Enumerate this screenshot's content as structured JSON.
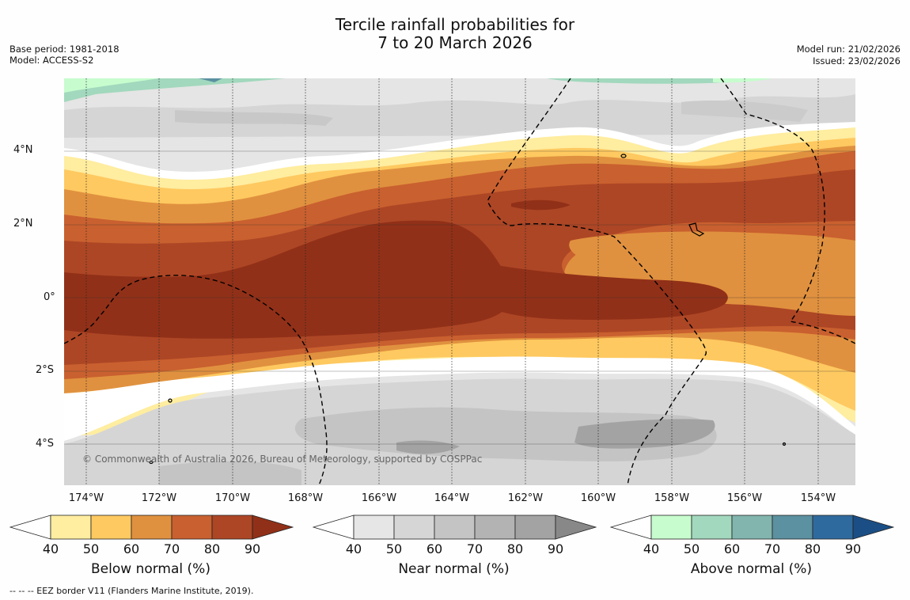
{
  "header": {
    "title_line1": "Tercile rainfall probabilities for",
    "title_line2": "7 to 20 March 2026",
    "base_period": "Base period: 1981-2018",
    "model": "Model: ACCESS-S2",
    "model_run": "Model run: 21/02/2026",
    "issued": "Issued: 23/02/2026"
  },
  "map": {
    "lat_labels": [
      "4°N",
      "2°N",
      "0°",
      "2°S",
      "4°S"
    ],
    "lon_labels": [
      "174°W",
      "172°W",
      "170°W",
      "168°W",
      "166°W",
      "164°W",
      "162°W",
      "160°W",
      "158°W",
      "156°W",
      "154°W"
    ],
    "copyright": "© Commonwealth of Australia 2026, Bureau of Meteorology, supported by COSPPac"
  },
  "colorbars": [
    {
      "title": "Below normal (%)",
      "ticks": [
        "40",
        "50",
        "60",
        "70",
        "80",
        "90"
      ],
      "colors": [
        "#ffeda0",
        "#fec960",
        "#e0913f",
        "#c9602f",
        "#ad4625",
        "#913018"
      ]
    },
    {
      "title": "Near normal (%)",
      "ticks": [
        "40",
        "50",
        "60",
        "70",
        "80",
        "90"
      ],
      "colors": [
        "#e6e6e6",
        "#d6d6d6",
        "#c4c4c4",
        "#b3b3b3",
        "#a3a3a3",
        "#888888"
      ]
    },
    {
      "title": "Above normal (%)",
      "ticks": [
        "40",
        "50",
        "60",
        "70",
        "80",
        "90"
      ],
      "colors": [
        "#c7fcce",
        "#a2d8bd",
        "#81b5ae",
        "#5b91a0",
        "#2f6a9e",
        "#1b4e84"
      ]
    }
  ],
  "footer": "--  --  -- EEZ border V11 (Flanders Marine Institute, 2019)."
}
